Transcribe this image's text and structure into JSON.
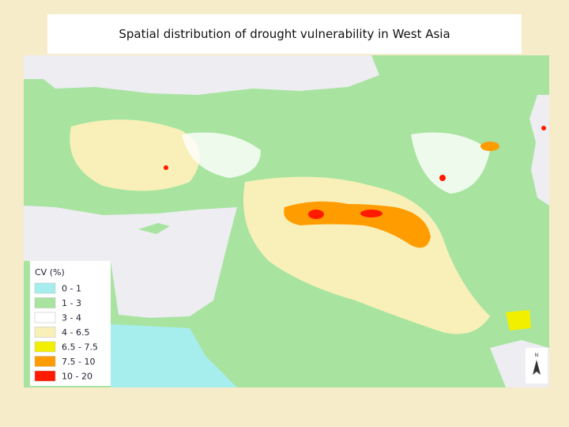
{
  "title": "Spatial distribution of drought vulnerability in West Asia",
  "legend": {
    "title": "CV (%)",
    "items": [
      {
        "label": "0 - 1",
        "color": "#a6eeee"
      },
      {
        "label": "1 - 3",
        "color": "#a8e4a0"
      },
      {
        "label": "3 - 4",
        "color": "#ffffff"
      },
      {
        "label": "4 - 6.5",
        "color": "#f8f0b8"
      },
      {
        "label": "6.5 - 7.5",
        "color": "#f2f000"
      },
      {
        "label": "7.5 - 10",
        "color": "#ff9c00"
      },
      {
        "label": "10 - 20",
        "color": "#ff1a00"
      }
    ]
  },
  "north_label": "N"
}
